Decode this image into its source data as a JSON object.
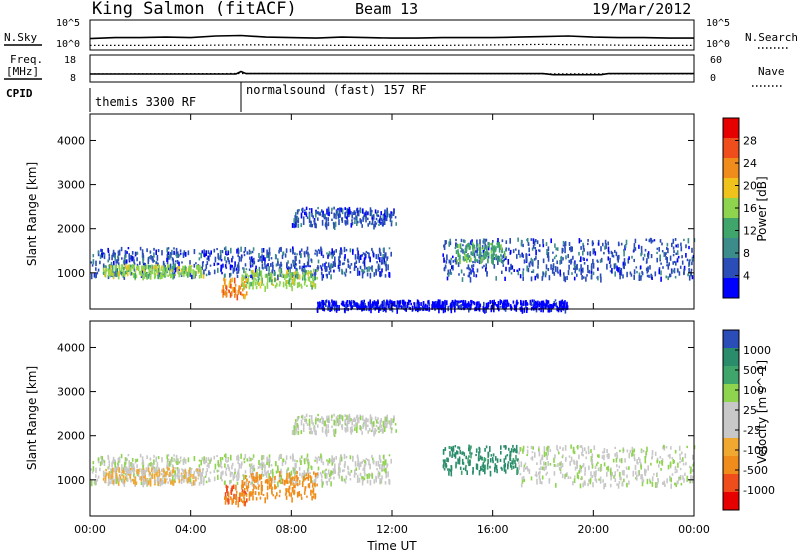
{
  "header": {
    "station": "King Salmon (fitACF)",
    "beam": "Beam 13",
    "date": "19/Mar/2012"
  },
  "summary_panels": {
    "nsky_label": "N.Sky",
    "nsky_ticks": [
      "10^5",
      "10^0"
    ],
    "nsearch_label": "N.Search",
    "nsearch_ticks": [
      "10^5",
      "10^0"
    ],
    "freq_label": "Freq.",
    "freq_unit": "[MHz]",
    "freq_ticks": [
      "18",
      "8"
    ],
    "nave_label": "Nave",
    "nave_ticks": [
      "60",
      "0"
    ],
    "cpid_label": "CPID",
    "cpid_segments": [
      {
        "label": "themis 3300 RF",
        "start_hour": 0.0
      },
      {
        "label": "normalsound (fast) 157 RF",
        "start_hour": 6.0
      }
    ]
  },
  "colors": {
    "power": [
      "#0000ff",
      "#2a4db8",
      "#3c8c8c",
      "#3fa56b",
      "#8ed44e",
      "#f0c21c",
      "#f08c1c",
      "#f04d1c",
      "#e60000"
    ],
    "velocity": [
      "#e60000",
      "#f04d1c",
      "#f08c1c",
      "#f0a830",
      "#c8c8c8",
      "#c8c8c8",
      "#8ed44e",
      "#3fa56b",
      "#2a8c6b",
      "#2a4db8"
    ]
  },
  "chart_data": [
    {
      "type": "line",
      "title": "N.Sky / N.Search",
      "x_unit": "hour UT",
      "xlim": [
        0,
        24
      ],
      "ylim_log10": [
        0,
        5
      ],
      "series": [
        {
          "name": "N.Sky",
          "style": "solid",
          "x": [
            0,
            1,
            2,
            3,
            4,
            5,
            6,
            7,
            8,
            9,
            10,
            11,
            12,
            13,
            14,
            15,
            16,
            17,
            18,
            19,
            20,
            21,
            22,
            23,
            24
          ],
          "y": [
            1.8,
            2.0,
            2.0,
            2.1,
            2.0,
            2.3,
            2.4,
            2.1,
            2.0,
            1.9,
            2.1,
            2.0,
            1.9,
            1.9,
            2.0,
            2.0,
            2.0,
            2.1,
            2.2,
            2.3,
            2.1,
            2.0,
            2.0,
            1.9,
            1.9
          ]
        },
        {
          "name": "N.Search",
          "style": "dotted",
          "x": [
            0,
            2,
            4,
            6,
            8,
            10,
            12,
            14,
            16,
            18,
            20,
            22,
            24
          ],
          "y": [
            0.5,
            0.5,
            0.5,
            0.6,
            0.6,
            0.5,
            0.5,
            0.5,
            0.6,
            0.7,
            0.6,
            0.5,
            0.5
          ]
        }
      ]
    },
    {
      "type": "line",
      "title": "Freq. / Nave",
      "x_unit": "hour UT",
      "xlim": [
        0,
        24
      ],
      "ylim_freq": [
        8,
        18
      ],
      "ylim_nave": [
        0,
        60
      ],
      "series": [
        {
          "name": "Freq. [MHz]",
          "style": "solid",
          "x": [
            0,
            5.8,
            6.0,
            6.2,
            18.0,
            18.4,
            20.3,
            20.6,
            24
          ],
          "y": [
            10.6,
            10.6,
            11.7,
            10.8,
            10.8,
            10.3,
            10.3,
            10.8,
            10.8
          ]
        },
        {
          "name": "Nave",
          "style": "dotted",
          "x": [
            0,
            6,
            12,
            18,
            24
          ],
          "y": [
            16,
            17,
            17,
            16,
            16
          ]
        }
      ]
    },
    {
      "type": "heatmap",
      "title": "Power",
      "xlabel": "",
      "ylabel": "Slant Range [km]",
      "colorbar_label": "Power [dB]",
      "colorbar_ticks": [
        4,
        8,
        12,
        16,
        20,
        24,
        28
      ],
      "xlim": [
        0,
        24
      ],
      "ylim": [
        180,
        4600
      ],
      "yticks": [
        1000,
        2000,
        3000,
        4000
      ],
      "features": [
        {
          "name": "evening band",
          "t0": 0.0,
          "t1": 12.0,
          "r0": 950,
          "r1": 1600,
          "level_db": 8
        },
        {
          "name": "pre-midnight enhancement",
          "t0": 0.5,
          "t1": 4.5,
          "r0": 950,
          "r1": 1200,
          "level_db": 20
        },
        {
          "name": "near-range echoes",
          "t0": 5.2,
          "t1": 6.2,
          "r0": 500,
          "r1": 900,
          "level_db": 28
        },
        {
          "name": "post-06 band",
          "t0": 6.0,
          "t1": 9.0,
          "r0": 700,
          "r1": 1100,
          "level_db": 20
        },
        {
          "name": "F-region 2400 km",
          "t0": 8.0,
          "t1": 12.2,
          "r0": 2100,
          "r1": 2500,
          "level_db": 8
        },
        {
          "name": "dayside band",
          "t0": 14.0,
          "t1": 24.0,
          "r0": 900,
          "r1": 1800,
          "level_db": 8
        },
        {
          "name": "dayside patches",
          "t0": 14.5,
          "t1": 16.5,
          "r0": 1300,
          "r1": 1700,
          "level_db": 16
        },
        {
          "name": "ground scatter near range",
          "t0": 9.0,
          "t1": 19.0,
          "r0": 200,
          "r1": 400,
          "level_db": 4
        }
      ]
    },
    {
      "type": "heatmap",
      "title": "Velocity",
      "xlabel": "Time UT",
      "ylabel": "Slant Range [km]",
      "colorbar_label": "Velocity [m s^-1]",
      "colorbar_ticks": [
        -1000,
        -500,
        -100,
        -25,
        25,
        100,
        500,
        1000
      ],
      "xlim": [
        0,
        24
      ],
      "ylim": [
        180,
        4600
      ],
      "yticks": [
        1000,
        2000,
        3000,
        4000
      ],
      "xticks": [
        "00:00",
        "04:00",
        "08:00",
        "12:00",
        "16:00",
        "20:00",
        "00:00"
      ],
      "features": [
        {
          "name": "ground scatter band",
          "t0": 0.0,
          "t1": 12.0,
          "r0": 950,
          "r1": 1600,
          "velocity": 0
        },
        {
          "name": "pre-midnight flow",
          "t0": 0.5,
          "t1": 4.5,
          "r0": 950,
          "r1": 1300,
          "velocity": -100
        },
        {
          "name": "near-range away flow",
          "t0": 5.3,
          "t1": 6.2,
          "r0": 500,
          "r1": 900,
          "velocity": -500
        },
        {
          "name": "post-06 away flow",
          "t0": 6.0,
          "t1": 9.0,
          "r0": 600,
          "r1": 1200,
          "velocity": -300
        },
        {
          "name": "F-region 2400 km",
          "t0": 8.0,
          "t1": 12.2,
          "r0": 2100,
          "r1": 2500,
          "velocity": 0
        },
        {
          "name": "dayside toward flow",
          "t0": 14.0,
          "t1": 17.0,
          "r0": 1200,
          "r1": 1800,
          "velocity": 300
        },
        {
          "name": "dayside ground scatter",
          "t0": 17.0,
          "t1": 24.0,
          "r0": 900,
          "r1": 1800,
          "velocity": 0
        }
      ]
    }
  ]
}
